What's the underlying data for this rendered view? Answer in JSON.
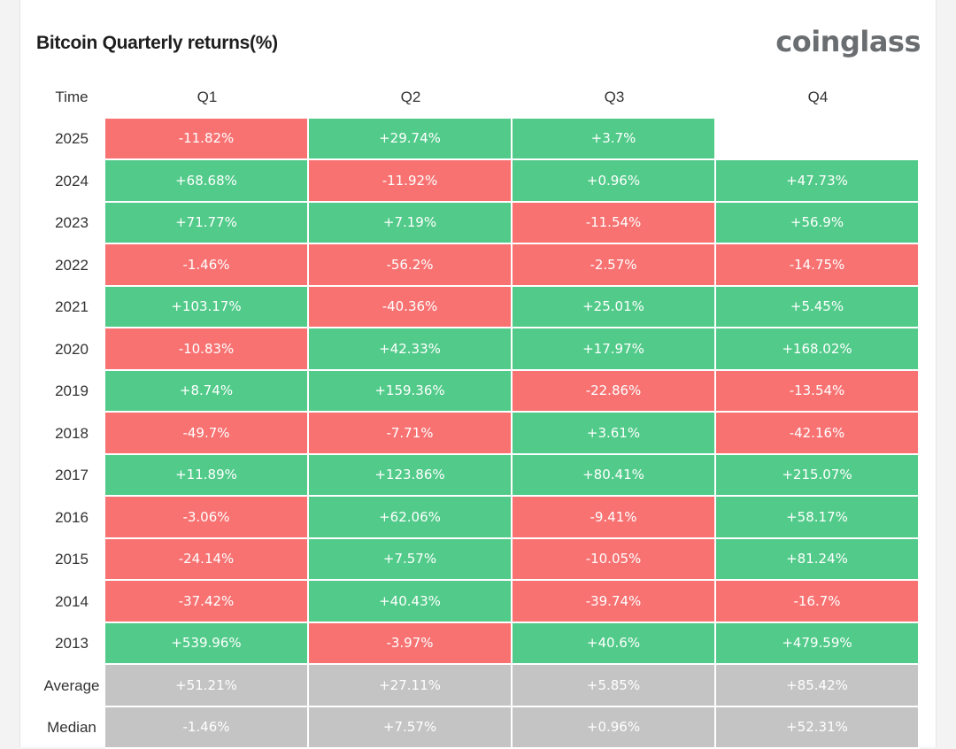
{
  "page": {
    "title": "Bitcoin Quarterly returns(%)",
    "logo": "coinglass"
  },
  "colors": {
    "positive": "#52cb8a",
    "negative": "#f87272",
    "summary": "#c4c4c4"
  },
  "chart_data": {
    "type": "table",
    "title": "Bitcoin Quarterly returns(%)",
    "row_header": "Time",
    "columns": [
      "Q1",
      "Q2",
      "Q3",
      "Q4"
    ],
    "rows": [
      {
        "label": "2025",
        "values": [
          "-11.82%",
          "+29.74%",
          "+3.7%",
          ""
        ]
      },
      {
        "label": "2024",
        "values": [
          "+68.68%",
          "-11.92%",
          "+0.96%",
          "+47.73%"
        ]
      },
      {
        "label": "2023",
        "values": [
          "+71.77%",
          "+7.19%",
          "-11.54%",
          "+56.9%"
        ]
      },
      {
        "label": "2022",
        "values": [
          "-1.46%",
          "-56.2%",
          "-2.57%",
          "-14.75%"
        ]
      },
      {
        "label": "2021",
        "values": [
          "+103.17%",
          "-40.36%",
          "+25.01%",
          "+5.45%"
        ]
      },
      {
        "label": "2020",
        "values": [
          "-10.83%",
          "+42.33%",
          "+17.97%",
          "+168.02%"
        ]
      },
      {
        "label": "2019",
        "values": [
          "+8.74%",
          "+159.36%",
          "-22.86%",
          "-13.54%"
        ]
      },
      {
        "label": "2018",
        "values": [
          "-49.7%",
          "-7.71%",
          "+3.61%",
          "-42.16%"
        ]
      },
      {
        "label": "2017",
        "values": [
          "+11.89%",
          "+123.86%",
          "+80.41%",
          "+215.07%"
        ]
      },
      {
        "label": "2016",
        "values": [
          "-3.06%",
          "+62.06%",
          "-9.41%",
          "+58.17%"
        ]
      },
      {
        "label": "2015",
        "values": [
          "-24.14%",
          "+7.57%",
          "-10.05%",
          "+81.24%"
        ]
      },
      {
        "label": "2014",
        "values": [
          "-37.42%",
          "+40.43%",
          "-39.74%",
          "-16.7%"
        ]
      },
      {
        "label": "2013",
        "values": [
          "+539.96%",
          "-3.97%",
          "+40.6%",
          "+479.59%"
        ]
      },
      {
        "label": "Average",
        "values": [
          "+51.21%",
          "+27.11%",
          "+5.85%",
          "+85.42%"
        ],
        "summary": true
      },
      {
        "label": "Median",
        "values": [
          "-1.46%",
          "+7.57%",
          "+0.96%",
          "+52.31%"
        ],
        "summary": true
      }
    ]
  }
}
